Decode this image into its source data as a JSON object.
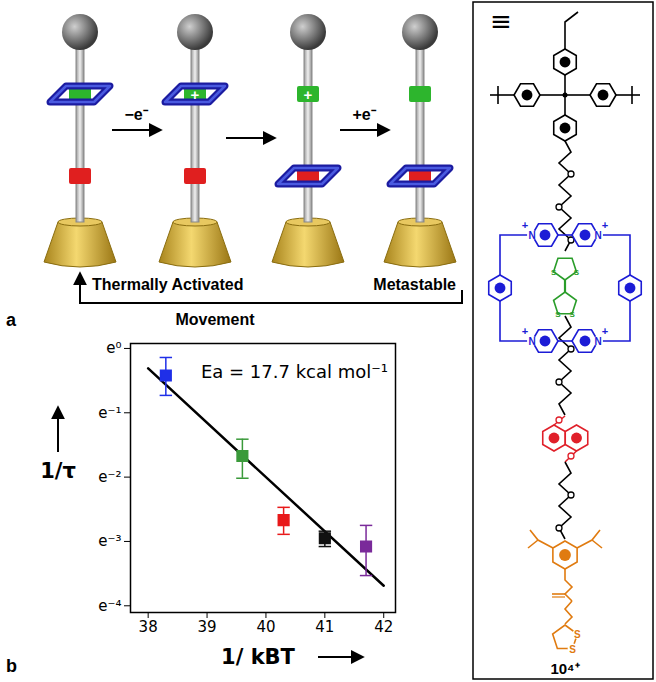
{
  "chart_data": {
    "type": "scatter",
    "x_label": "1/ kBT",
    "y_label": "1/τ",
    "annotations": [
      "Ea = 17.7 kcal mol⁻¹"
    ],
    "log": "y",
    "grid": false,
    "marker": "square",
    "xlim": [
      37.7,
      42.2
    ],
    "xticks": [
      38,
      39,
      40,
      41,
      42
    ],
    "ylim": [
      0.0165,
      1.08
    ],
    "yticks": [
      {
        "value": 1,
        "label": "e⁰"
      },
      {
        "value": 0.367879,
        "label": "e⁻¹"
      },
      {
        "value": 0.135335,
        "label": "e⁻²"
      },
      {
        "value": 0.049787,
        "label": "e⁻³"
      },
      {
        "value": 0.018316,
        "label": "e⁻⁴"
      }
    ],
    "x": [
      38.3,
      39.6,
      40.3,
      41.0,
      41.7
    ],
    "values": [
      0.657,
      0.188,
      0.0693,
      0.0523,
      0.046
    ],
    "error_low": [
      0.482,
      0.133,
      0.0556,
      0.046,
      0.0293
    ],
    "error_high": [
      0.869,
      0.244,
      0.0846,
      0.0584,
      0.0639
    ],
    "colors": [
      "#1f2fe8",
      "#3a9a3a",
      "#e8191a",
      "#111111",
      "#7a2a9a"
    ],
    "fit": {
      "x": [
        38,
        42
      ],
      "values": [
        0.733,
        0.025
      ],
      "color": "#000000"
    }
  },
  "panel_a": {
    "letter": "a",
    "steps": [
      "−e⁻",
      "+e⁻"
    ],
    "charge": "+",
    "loop": {
      "left": "Thermally Activated",
      "right": "Metastable",
      "bottom": "Movement"
    }
  },
  "panel_b": {
    "letter": "b"
  },
  "structure": {
    "equivalent": "≡",
    "nitrogen": "N",
    "charge": "+",
    "sulfur": "S",
    "compound": "10⁴⁺"
  }
}
